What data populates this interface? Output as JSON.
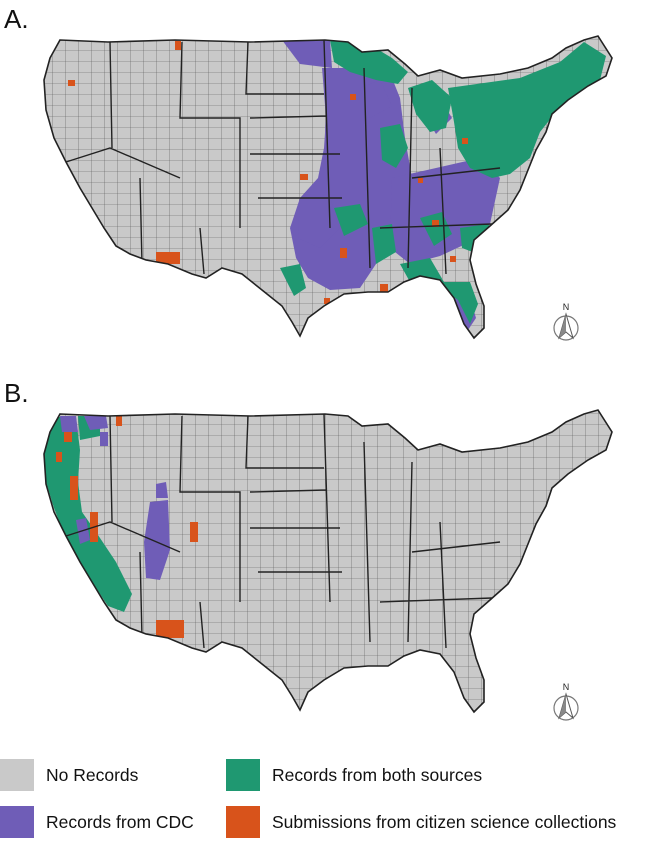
{
  "panels": [
    {
      "label": "A.",
      "north_label": "N"
    },
    {
      "label": "B.",
      "north_label": "N"
    }
  ],
  "legend": [
    {
      "label": "No Records",
      "color": "#c9c9c9"
    },
    {
      "label": "Records from both sources",
      "color": "#1f9871"
    },
    {
      "label": "Records from CDC",
      "color": "#6f5db7"
    },
    {
      "label": "Submissions from citizen science collections",
      "color": "#d8531b"
    }
  ]
}
